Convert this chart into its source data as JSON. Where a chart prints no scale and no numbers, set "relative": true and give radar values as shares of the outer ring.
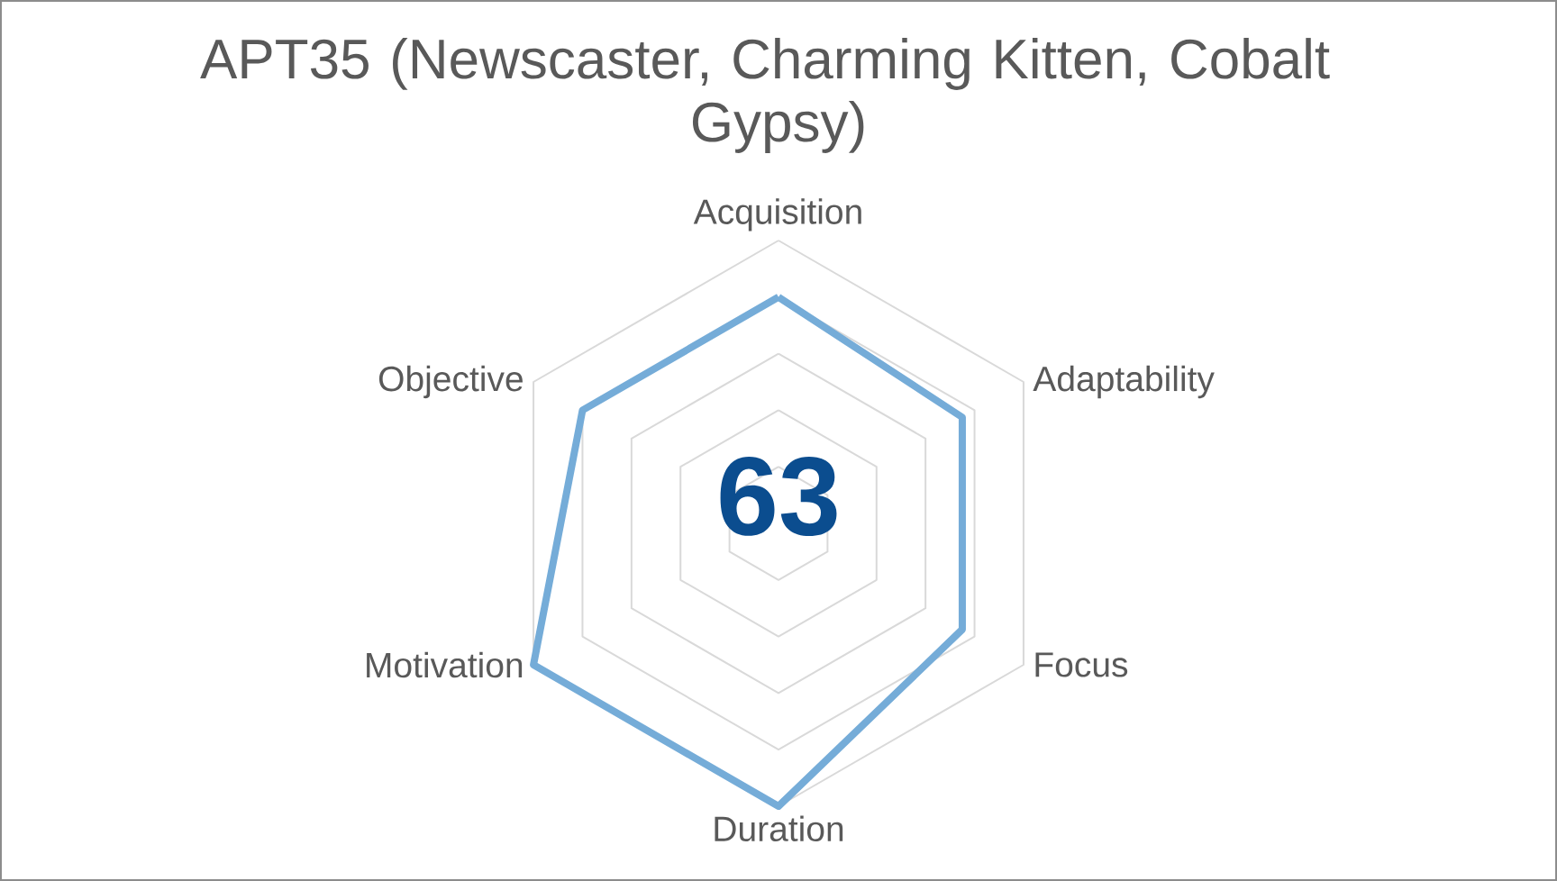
{
  "chart_data": {
    "type": "radar",
    "title": "APT35 (Newscaster, Charming Kitten, Cobalt Gypsy)",
    "categories": [
      "Acquisition",
      "Adaptability",
      "Focus",
      "Duration",
      "Motivation",
      "Objective"
    ],
    "relative": true,
    "series": [
      {
        "color": "#75acd8",
        "values": [
          0.8,
          0.75,
          0.75,
          1,
          1,
          0.8
        ]
      }
    ],
    "grid": true,
    "annotations": [
      "63"
    ]
  }
}
